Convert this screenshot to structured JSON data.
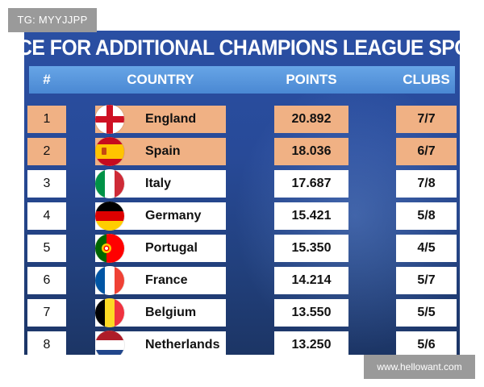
{
  "watermark_top": "TG: MYYJJPP",
  "watermark_bottom": "www.hellowant.com",
  "title": "RACE FOR ADDITIONAL CHAMPIONS LEAGUE SPOTS",
  "headers": {
    "rank": "#",
    "country": "COUNTRY",
    "points": "POINTS",
    "clubs": "CLUBS"
  },
  "colors": {
    "highlight": "#f0b184",
    "header": "#5a97dc",
    "background": "#284a98"
  },
  "rows": [
    {
      "rank": "1",
      "country": "England",
      "points": "20.892",
      "clubs": "7/7",
      "highlighted": true,
      "flag": "england-flag-icon"
    },
    {
      "rank": "2",
      "country": "Spain",
      "points": "18.036",
      "clubs": "6/7",
      "highlighted": true,
      "flag": "spain-flag-icon"
    },
    {
      "rank": "3",
      "country": "Italy",
      "points": "17.687",
      "clubs": "7/8",
      "highlighted": false,
      "flag": "italy-flag-icon"
    },
    {
      "rank": "4",
      "country": "Germany",
      "points": "15.421",
      "clubs": "5/8",
      "highlighted": false,
      "flag": "germany-flag-icon"
    },
    {
      "rank": "5",
      "country": "Portugal",
      "points": "15.350",
      "clubs": "4/5",
      "highlighted": false,
      "flag": "portugal-flag-icon"
    },
    {
      "rank": "6",
      "country": "France",
      "points": "14.214",
      "clubs": "5/7",
      "highlighted": false,
      "flag": "france-flag-icon"
    },
    {
      "rank": "7",
      "country": "Belgium",
      "points": "13.550",
      "clubs": "5/5",
      "highlighted": false,
      "flag": "belgium-flag-icon"
    },
    {
      "rank": "8",
      "country": "Netherlands",
      "points": "13.250",
      "clubs": "5/6",
      "highlighted": false,
      "flag": "netherlands-flag-icon"
    }
  ]
}
